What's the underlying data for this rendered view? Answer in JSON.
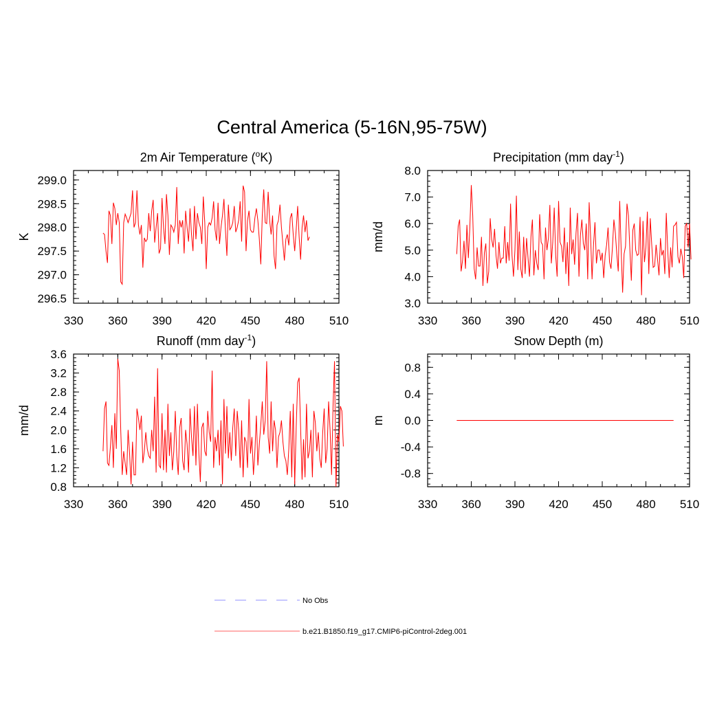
{
  "figure": {
    "title": "Central America (5-16N,95-75W)"
  },
  "legend": {
    "items": [
      {
        "label": "No Obs",
        "color": "#a8a8ff",
        "style": "dashed"
      },
      {
        "label": "b.e21.B1850.f19_g17.CMIP6-piControl-2deg.001",
        "color": "#ff8080",
        "style": "solid"
      }
    ]
  },
  "colors": {
    "series": "#ff0000",
    "axis": "#000000"
  },
  "chart_data": [
    {
      "type": "line",
      "title": "2m Air Temperature (°K)",
      "title_parts": {
        "pre": "2m Air Temperature (",
        "sup": "o",
        "post": "K)"
      },
      "xlabel": "",
      "ylabel": "K",
      "xlim": [
        330,
        510
      ],
      "ylim": [
        296.4,
        299.2
      ],
      "xticks": [
        330,
        360,
        390,
        420,
        450,
        480,
        510
      ],
      "xtick_labels": [
        "330",
        "360",
        "390",
        "420",
        "450",
        "480",
        "510"
      ],
      "yticks": [
        296.5,
        297.0,
        297.5,
        298.0,
        298.5,
        299.0
      ],
      "ytick_labels": [
        "296.5",
        "297.0",
        "297.5",
        "298.0",
        "298.5",
        "299.0"
      ],
      "x_start": 350,
      "series": [
        {
          "name": "b.e21.B1850.f19_g17.CMIP6-piControl-2deg.001",
          "values": [
            297.88,
            297.85,
            297.5,
            297.25,
            298.35,
            298.25,
            297.65,
            298.52,
            298.4,
            298.05,
            298.3,
            298.1,
            296.85,
            296.8,
            298.1,
            298.28,
            298.2,
            298.1,
            298.2,
            298.3,
            298.78,
            298.0,
            298.1,
            298.78,
            298.05,
            297.85,
            298.05,
            297.15,
            297.78,
            297.7,
            297.75,
            298.3,
            297.92,
            298.35,
            298.58,
            297.68,
            298.0,
            298.3,
            297.45,
            297.55,
            298.62,
            298.0,
            297.65,
            298.7,
            298.25,
            297.42,
            298.05,
            298.0,
            297.9,
            298.05,
            298.85,
            297.65,
            298.15,
            298.0,
            298.15,
            297.45,
            298.35,
            298.0,
            297.7,
            298.4,
            297.85,
            297.5,
            298.45,
            297.75,
            298.3,
            298.1,
            298.0,
            297.65,
            298.65,
            298.1,
            297.12,
            298.0,
            298.1,
            298.05,
            298.2,
            298.55,
            297.95,
            297.72,
            298.52,
            297.65,
            298.0,
            298.25,
            298.6,
            297.95,
            297.4,
            298.48,
            297.95,
            298.0,
            298.1,
            298.45,
            297.9,
            298.0,
            298.15,
            298.55,
            297.7,
            298.88,
            298.75,
            297.5,
            298.15,
            298.35,
            297.95,
            297.9,
            297.9,
            298.2,
            298.4,
            298.15,
            297.75,
            297.22,
            298.25,
            298.8,
            298.1,
            298.08,
            298.75,
            298.15,
            297.85,
            298.25,
            297.4,
            297.12,
            298.05,
            298.15,
            298.48,
            298.0,
            297.65,
            297.3,
            297.75,
            297.85,
            297.62,
            298.2,
            298.3,
            297.85,
            297.5,
            297.95,
            298.45,
            297.8,
            297.32,
            298.0,
            298.25,
            297.9,
            298.15,
            297.72,
            297.8
          ]
        }
      ]
    },
    {
      "type": "line",
      "title": "Precipitation (mm day-1)",
      "title_parts": {
        "pre": "Precipitation (mm day",
        "sup": "-1",
        "post": ")"
      },
      "xlabel": "",
      "ylabel": "mm/d",
      "xlim": [
        330,
        510
      ],
      "ylim": [
        3.0,
        8.0
      ],
      "xticks": [
        330,
        360,
        390,
        420,
        450,
        480,
        510
      ],
      "xtick_labels": [
        "330",
        "360",
        "390",
        "420",
        "450",
        "480",
        "510"
      ],
      "yticks": [
        3.0,
        4.0,
        5.0,
        6.0,
        7.0,
        8.0
      ],
      "ytick_labels": [
        "3.0",
        "4.0",
        "5.0",
        "6.0",
        "7.0",
        "8.0"
      ],
      "x_start": 350,
      "series": [
        {
          "name": "b.e21.B1850.f19_g17.CMIP6-piControl-2deg.001",
          "values": [
            4.85,
            5.9,
            6.15,
            4.2,
            4.6,
            5.35,
            4.3,
            5.95,
            4.7,
            5.85,
            7.45,
            6.3,
            4.3,
            3.9,
            5.1,
            4.4,
            4.4,
            5.5,
            3.65,
            4.9,
            5.25,
            3.75,
            4.2,
            6.2,
            5.4,
            5.1,
            5.8,
            4.8,
            4.3,
            5.3,
            4.5,
            4.7,
            4.7,
            5.9,
            4.5,
            5.3,
            4.6,
            6.75,
            4.8,
            4.0,
            5.0,
            7.05,
            4.25,
            5.7,
            4.3,
            3.95,
            5.5,
            4.1,
            5.45,
            4.7,
            4.0,
            5.5,
            6.15,
            4.05,
            5.0,
            4.5,
            4.25,
            6.35,
            5.3,
            5.2,
            3.9,
            5.85,
            5.0,
            5.45,
            6.7,
            4.5,
            5.3,
            6.6,
            4.8,
            4.0,
            6.85,
            5.3,
            5.15,
            4.55,
            5.85,
            4.1,
            5.3,
            3.65,
            6.6,
            4.85,
            5.4,
            4.45,
            5.65,
            6.4,
            4.0,
            5.55,
            6.15,
            5.25,
            5.0,
            6.0,
            3.9,
            6.8,
            5.5,
            3.9,
            5.2,
            6.05,
            4.5,
            5.0,
            5.0,
            4.6,
            4.9,
            3.95,
            4.8,
            5.2,
            5.85,
            4.55,
            4.3,
            5.1,
            6.15,
            5.65,
            4.85,
            4.2,
            6.85,
            5.0,
            3.4,
            4.85,
            5.15,
            6.75,
            6.3,
            5.0,
            3.85,
            5.75,
            6.0,
            5.0,
            4.8,
            4.85,
            6.25,
            3.3,
            6.1,
            4.55,
            5.1,
            6.45,
            4.1,
            6.2,
            5.2,
            4.35,
            4.4,
            5.2,
            4.65,
            4.05,
            5.45,
            4.8,
            5.0,
            4.1,
            6.4,
            5.0,
            3.95,
            5.1,
            4.35,
            5.9,
            5.95,
            6.05,
            4.75,
            4.5,
            5.05,
            4.75,
            3.95,
            5.9,
            6.0,
            5.1,
            6.0,
            4.65
          ]
        }
      ]
    },
    {
      "type": "line",
      "title": "Runoff (mm day-1)",
      "title_parts": {
        "pre": "Runoff (mm day",
        "sup": "-1",
        "post": ")"
      },
      "xlabel": "",
      "ylabel": "mm/d",
      "xlim": [
        330,
        510
      ],
      "ylim": [
        0.8,
        3.6
      ],
      "xticks": [
        330,
        360,
        390,
        420,
        450,
        480,
        510
      ],
      "xtick_labels": [
        "330",
        "360",
        "390",
        "420",
        "450",
        "480",
        "510"
      ],
      "yticks": [
        0.8,
        1.2,
        1.6,
        2.0,
        2.4,
        2.8,
        3.2,
        3.6
      ],
      "ytick_labels": [
        "0.8",
        "1.2",
        "1.6",
        "2.0",
        "2.4",
        "2.8",
        "3.2",
        "3.6"
      ],
      "x_start": 350,
      "series": [
        {
          "name": "b.e21.B1850.f19_g17.CMIP6-piControl-2deg.001",
          "values": [
            1.55,
            2.45,
            2.6,
            1.3,
            1.25,
            1.65,
            2.1,
            1.2,
            2.35,
            1.6,
            3.5,
            3.25,
            2.0,
            1.05,
            1.55,
            1.3,
            1.05,
            2.0,
            1.5,
            0.85,
            1.75,
            1.05,
            1.05,
            2.45,
            2.25,
            2.0,
            2.3,
            1.3,
            1.55,
            1.95,
            1.6,
            1.45,
            1.4,
            2.0,
            1.55,
            2.7,
            1.1,
            3.3,
            1.25,
            1.2,
            2.35,
            1.15,
            2.0,
            1.1,
            2.55,
            1.45,
            1.95,
            1.15,
            1.55,
            2.4,
            1.45,
            1.05,
            2.05,
            2.25,
            1.35,
            1.15,
            2.0,
            1.7,
            1.1,
            2.45,
            1.85,
            1.45,
            2.5,
            1.25,
            2.55,
            1.5,
            0.9,
            2.05,
            2.15,
            1.55,
            1.45,
            2.4,
            1.95,
            1.75,
            3.25,
            1.2,
            1.85,
            1.55,
            2.0,
            1.25,
            2.2,
            0.85,
            2.65,
            1.5,
            2.5,
            1.4,
            1.95,
            1.35,
            2.05,
            2.45,
            1.45,
            2.4,
            2.0,
            1.2,
            2.2,
            1.0,
            1.85,
            1.75,
            1.2,
            2.65,
            1.5,
            1.85,
            1.05,
            1.55,
            2.3,
            1.25,
            1.7,
            2.1,
            2.6,
            1.9,
            2.2,
            3.45,
            1.85,
            1.5,
            2.6,
            1.55,
            2.2,
            2.0,
            1.2,
            1.85,
            1.95,
            2.2,
            1.75,
            1.45,
            1.35,
            1.05,
            1.6,
            2.4,
            1.0,
            2.55,
            0.85,
            2.05,
            3.0,
            3.1,
            2.05,
            0.95,
            1.8,
            1.0,
            2.55,
            1.4,
            1.55,
            2.0,
            1.0,
            2.4,
            2.15,
            1.55,
            1.95,
            1.4,
            1.2,
            1.95,
            2.45,
            1.3,
            1.6,
            2.6,
            2.0,
            1.05,
            2.5,
            3.45,
            0.8,
            1.9,
            1.75,
            2.5,
            2.4,
            1.65
          ]
        }
      ]
    },
    {
      "type": "line",
      "title": "Snow Depth (m)",
      "title_parts": {
        "pre": "Snow Depth (m)",
        "sup": "",
        "post": ""
      },
      "xlabel": "",
      "ylabel": "m",
      "xlim": [
        330,
        510
      ],
      "ylim": [
        -1.0,
        1.0
      ],
      "xticks": [
        330,
        360,
        390,
        420,
        450,
        480,
        510
      ],
      "xtick_labels": [
        "330",
        "360",
        "390",
        "420",
        "450",
        "480",
        "510"
      ],
      "yticks": [
        -0.8,
        -0.4,
        0.0,
        0.4,
        0.8
      ],
      "ytick_labels": [
        "-0.8",
        "-0.4",
        "0.0",
        "0.4",
        "0.8"
      ],
      "x_start": 350,
      "x_end": 499,
      "series": [
        {
          "name": "b.e21.B1850.f19_g17.CMIP6-piControl-2deg.001",
          "values": [
            0.0,
            0.0
          ]
        }
      ]
    }
  ]
}
